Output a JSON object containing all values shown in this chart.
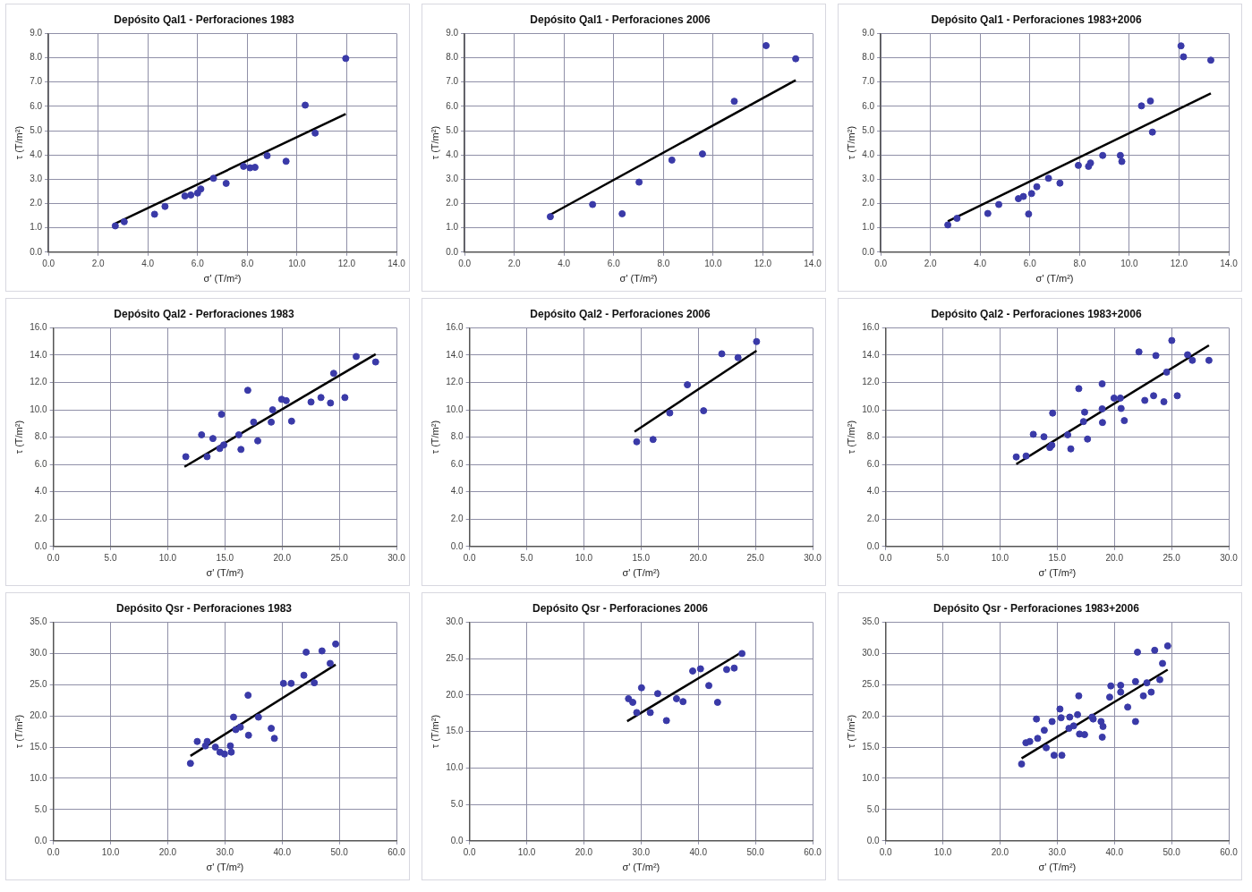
{
  "chart_data": [
    {
      "type": "scatter",
      "title": "Depósito Qal1 - Perforaciones 1983",
      "xlabel": "σ' (T/m²)",
      "ylabel": "τ (T/m²)",
      "xlim": [
        0,
        14
      ],
      "ylim": [
        0,
        9
      ],
      "xticks": [
        {
          "value": 0,
          "label": "0.0"
        },
        {
          "value": 2,
          "label": "2.0"
        },
        {
          "value": 4,
          "label": "4.0"
        },
        {
          "value": 6,
          "label": "6.0"
        },
        {
          "value": 8,
          "label": "8.0"
        },
        {
          "value": 10,
          "label": "10.0"
        },
        {
          "value": 12,
          "label": "12.0"
        },
        {
          "value": 14,
          "label": "14.0"
        }
      ],
      "yticks": [
        {
          "value": 0,
          "label": "0.0"
        },
        {
          "value": 1,
          "label": "1.0"
        },
        {
          "value": 2,
          "label": "2.0"
        },
        {
          "value": 3,
          "label": "3.0"
        },
        {
          "value": 4,
          "label": "4.0"
        },
        {
          "value": 5,
          "label": "5.0"
        },
        {
          "value": 6,
          "label": "6.0"
        },
        {
          "value": 7,
          "label": "7.0"
        },
        {
          "value": 8,
          "label": "8.0"
        },
        {
          "value": 9,
          "label": "9.0"
        }
      ],
      "grid": true,
      "legend": false,
      "series": [
        {
          "type": "scatter",
          "color": "#3a3aa8",
          "marker": "circle",
          "x": [
            2.69,
            3.05,
            4.27,
            4.69,
            5.49,
            5.73,
            6.0,
            6.13,
            6.64,
            7.15,
            7.85,
            8.11,
            8.31,
            8.8,
            9.56,
            10.33,
            10.73,
            11.96
          ],
          "values": [
            1.08,
            1.25,
            1.56,
            1.88,
            2.31,
            2.35,
            2.43,
            2.6,
            3.04,
            2.83,
            3.53,
            3.47,
            3.49,
            3.97,
            3.74,
            6.05,
            4.9,
            7.97
          ]
        },
        {
          "type": "line",
          "color": "#000000",
          "marker": "none",
          "x": [
            2.69,
            11.96
          ],
          "values": [
            1.18,
            5.69
          ]
        }
      ]
    },
    {
      "type": "scatter",
      "title": "Depósito Qal1 - Perforaciones 2006",
      "xlabel": "σ' (T/m²)",
      "ylabel": "τ (T/m²)",
      "xlim": [
        0,
        14
      ],
      "ylim": [
        0,
        9
      ],
      "xticks": [
        {
          "value": 0,
          "label": "0.0"
        },
        {
          "value": 2,
          "label": "2.0"
        },
        {
          "value": 4,
          "label": "4.0"
        },
        {
          "value": 6,
          "label": "6.0"
        },
        {
          "value": 8,
          "label": "8.0"
        },
        {
          "value": 10,
          "label": "10.0"
        },
        {
          "value": 12,
          "label": "12.0"
        },
        {
          "value": 14,
          "label": "14.0"
        }
      ],
      "yticks": [
        {
          "value": 0,
          "label": "0.0"
        },
        {
          "value": 1,
          "label": "1.0"
        },
        {
          "value": 2,
          "label": "2.0"
        },
        {
          "value": 3,
          "label": "3.0"
        },
        {
          "value": 4,
          "label": "4.0"
        },
        {
          "value": 5,
          "label": "5.0"
        },
        {
          "value": 6,
          "label": "6.0"
        },
        {
          "value": 7,
          "label": "7.0"
        },
        {
          "value": 8,
          "label": "8.0"
        },
        {
          "value": 9,
          "label": "9.0"
        }
      ],
      "grid": true,
      "legend": false,
      "series": [
        {
          "type": "scatter",
          "color": "#3a3aa8",
          "marker": "circle",
          "x": [
            3.45,
            5.15,
            6.34,
            7.02,
            8.34,
            9.57,
            10.85,
            12.13,
            13.32
          ],
          "values": [
            1.46,
            1.96,
            1.58,
            2.88,
            3.79,
            4.04,
            6.21,
            8.5,
            7.96
          ]
        },
        {
          "type": "line",
          "color": "#000000",
          "marker": "none",
          "x": [
            3.45,
            13.32
          ],
          "values": [
            1.54,
            7.08
          ]
        }
      ]
    },
    {
      "type": "scatter",
      "title": "Depósito Qal1 - Perforaciones 1983+2006",
      "xlabel": "σ' (T/m²)",
      "ylabel": "τ (T/m²)",
      "xlim": [
        0,
        14
      ],
      "ylim": [
        0,
        9
      ],
      "xticks": [
        {
          "value": 0,
          "label": "0.0"
        },
        {
          "value": 2,
          "label": "2.0"
        },
        {
          "value": 4,
          "label": "4.0"
        },
        {
          "value": 6,
          "label": "6.0"
        },
        {
          "value": 8,
          "label": "8.0"
        },
        {
          "value": 10,
          "label": "10.0"
        },
        {
          "value": 12,
          "label": "12.0"
        },
        {
          "value": 14,
          "label": "14.0"
        }
      ],
      "yticks": [
        {
          "value": 0,
          "label": "0.0"
        },
        {
          "value": 1,
          "label": "1.0"
        },
        {
          "value": 2,
          "label": "2.0"
        },
        {
          "value": 3,
          "label": "3.0"
        },
        {
          "value": 4,
          "label": "4.0"
        },
        {
          "value": 5,
          "label": "5.0"
        },
        {
          "value": 6,
          "label": "6.0"
        },
        {
          "value": 7,
          "label": "7.0"
        },
        {
          "value": 8,
          "label": "8.0"
        },
        {
          "value": 9,
          "label": "9.0"
        }
      ],
      "grid": true,
      "legend": false,
      "series": [
        {
          "type": "scatter",
          "color": "#3a3aa8",
          "marker": "circle",
          "x": [
            2.7,
            3.07,
            4.31,
            4.75,
            5.54,
            5.74,
            6.07,
            6.28,
            5.95,
            6.75,
            7.21,
            7.95,
            8.36,
            8.44,
            8.93,
            9.64,
            9.7,
            10.49,
            10.85,
            10.93,
            12.08,
            12.18,
            13.28
          ],
          "values": [
            1.12,
            1.39,
            1.59,
            1.96,
            2.2,
            2.29,
            2.41,
            2.69,
            1.57,
            3.04,
            2.84,
            3.57,
            3.53,
            3.67,
            3.98,
            3.98,
            3.73,
            6.02,
            6.22,
            4.94,
            8.49,
            8.04,
            7.9
          ]
        },
        {
          "type": "line",
          "color": "#000000",
          "marker": "none",
          "x": [
            2.7,
            13.28
          ],
          "values": [
            1.27,
            6.53
          ]
        }
      ]
    },
    {
      "type": "scatter",
      "title": "Depósito Qal2 - Perforaciones 1983",
      "xlabel": "σ' (T/m²)",
      "ylabel": "τ (T/m²)",
      "xlim": [
        0,
        30
      ],
      "ylim": [
        0,
        16
      ],
      "xticks": [
        {
          "value": 0,
          "label": "0.0"
        },
        {
          "value": 5,
          "label": "5.0"
        },
        {
          "value": 10,
          "label": "10.0"
        },
        {
          "value": 15,
          "label": "15.0"
        },
        {
          "value": 20,
          "label": "20.0"
        },
        {
          "value": 25,
          "label": "25.0"
        },
        {
          "value": 30,
          "label": "30.0"
        }
      ],
      "yticks": [
        {
          "value": 0,
          "label": "0.0"
        },
        {
          "value": 2,
          "label": "2.0"
        },
        {
          "value": 4,
          "label": "4.0"
        },
        {
          "value": 6,
          "label": "6.0"
        },
        {
          "value": 8,
          "label": "8.0"
        },
        {
          "value": 10,
          "label": "10.0"
        },
        {
          "value": 12,
          "label": "12.0"
        },
        {
          "value": 14,
          "label": "14.0"
        },
        {
          "value": 16,
          "label": "16.0"
        }
      ],
      "grid": true,
      "legend": false,
      "series": [
        {
          "type": "scatter",
          "color": "#3a3aa8",
          "marker": "circle",
          "x": [
            11.58,
            12.96,
            13.44,
            13.95,
            14.7,
            14.55,
            14.9,
            16.21,
            16.4,
            17.0,
            17.51,
            17.87,
            19.05,
            19.17,
            19.96,
            20.36,
            20.83,
            22.53,
            23.4,
            24.23,
            24.51,
            25.49,
            26.48,
            28.18
          ],
          "values": [
            6.57,
            8.17,
            6.57,
            7.9,
            9.67,
            7.17,
            7.43,
            8.17,
            7.1,
            11.43,
            9.1,
            7.73,
            9.1,
            10.0,
            10.77,
            10.67,
            9.17,
            10.57,
            10.9,
            10.5,
            12.67,
            10.9,
            13.9,
            13.5
          ]
        },
        {
          "type": "line",
          "color": "#000000",
          "marker": "none",
          "x": [
            11.46,
            28.18
          ],
          "values": [
            5.83,
            14.07
          ]
        }
      ]
    },
    {
      "type": "scatter",
      "title": "Depósito Qal2 - Perforaciones 2006",
      "xlabel": "σ' (T/m²)",
      "ylabel": "τ (T/m²)",
      "xlim": [
        0,
        30
      ],
      "ylim": [
        0,
        16
      ],
      "xticks": [
        {
          "value": 0,
          "label": "0.0"
        },
        {
          "value": 5,
          "label": "5.0"
        },
        {
          "value": 10,
          "label": "10.0"
        },
        {
          "value": 15,
          "label": "15.0"
        },
        {
          "value": 20,
          "label": "20.0"
        },
        {
          "value": 25,
          "label": "25.0"
        },
        {
          "value": 30,
          "label": "30.0"
        }
      ],
      "yticks": [
        {
          "value": 0,
          "label": "0.0"
        },
        {
          "value": 2,
          "label": "2.0"
        },
        {
          "value": 4,
          "label": "4.0"
        },
        {
          "value": 6,
          "label": "6.0"
        },
        {
          "value": 8,
          "label": "8.0"
        },
        {
          "value": 10,
          "label": "10.0"
        },
        {
          "value": 12,
          "label": "12.0"
        },
        {
          "value": 14,
          "label": "14.0"
        },
        {
          "value": 16,
          "label": "16.0"
        }
      ],
      "grid": true,
      "legend": false,
      "series": [
        {
          "type": "scatter",
          "color": "#3a3aa8",
          "marker": "circle",
          "x": [
            14.62,
            16.05,
            17.51,
            19.05,
            20.47,
            22.06,
            23.48,
            25.1
          ],
          "values": [
            7.66,
            7.83,
            9.77,
            11.83,
            9.93,
            14.1,
            13.82,
            14.99
          ]
        },
        {
          "type": "line",
          "color": "#000000",
          "marker": "none",
          "x": [
            14.43,
            25.1
          ],
          "values": [
            8.4,
            14.32
          ]
        }
      ]
    },
    {
      "type": "scatter",
      "title": "Depósito Qal2 - Perforaciones 1983+2006",
      "xlabel": "σ' (T/m²)",
      "ylabel": "τ (T/m²)",
      "xlim": [
        0,
        30
      ],
      "ylim": [
        0,
        16
      ],
      "xticks": [
        {
          "value": 0,
          "label": "0.0"
        },
        {
          "value": 5,
          "label": "5.0"
        },
        {
          "value": 10,
          "label": "10.0"
        },
        {
          "value": 15,
          "label": "15.0"
        },
        {
          "value": 20,
          "label": "20.0"
        },
        {
          "value": 25,
          "label": "25.0"
        },
        {
          "value": 30,
          "label": "30.0"
        }
      ],
      "yticks": [
        {
          "value": 0,
          "label": "0.0"
        },
        {
          "value": 2,
          "label": "2.0"
        },
        {
          "value": 4,
          "label": "4.0"
        },
        {
          "value": 6,
          "label": "6.0"
        },
        {
          "value": 8,
          "label": "8.0"
        },
        {
          "value": 10,
          "label": "10.0"
        },
        {
          "value": 12,
          "label": "12.0"
        },
        {
          "value": 14,
          "label": "14.0"
        },
        {
          "value": 16,
          "label": "16.0"
        }
      ],
      "grid": true,
      "legend": false,
      "series": [
        {
          "type": "scatter",
          "color": "#3a3aa8",
          "marker": "circle",
          "x": [
            11.42,
            12.28,
            12.91,
            13.84,
            14.36,
            14.6,
            14.53,
            15.92,
            16.19,
            16.89,
            17.4,
            17.3,
            17.65,
            18.93,
            18.96,
            18.93,
            19.97,
            20.52,
            20.59,
            20.87,
            22.15,
            22.66,
            23.43,
            23.63,
            24.33,
            25.02,
            25.5,
            26.4,
            26.82,
            28.27,
            24.57
          ],
          "values": [
            6.55,
            6.62,
            8.21,
            8.03,
            7.24,
            9.76,
            7.41,
            8.17,
            7.14,
            11.55,
            9.83,
            9.14,
            7.86,
            11.9,
            9.07,
            10.07,
            10.86,
            10.86,
            10.1,
            9.21,
            14.24,
            10.69,
            11.03,
            13.97,
            10.59,
            15.07,
            11.03,
            14.03,
            13.62,
            13.62,
            12.76
          ]
        },
        {
          "type": "line",
          "color": "#000000",
          "marker": "none",
          "x": [
            11.42,
            28.27
          ],
          "values": [
            6.03,
            14.72
          ]
        }
      ]
    },
    {
      "type": "scatter",
      "title": "Depósito Qsr - Perforaciones 1983",
      "xlabel": "σ' (T/m²)",
      "ylabel": "τ (T/m²)",
      "xlim": [
        0,
        60
      ],
      "ylim": [
        0,
        35
      ],
      "xticks": [
        {
          "value": 0,
          "label": "0.0"
        },
        {
          "value": 10,
          "label": "10.0"
        },
        {
          "value": 20,
          "label": "20.0"
        },
        {
          "value": 30,
          "label": "30.0"
        },
        {
          "value": 40,
          "label": "40.0"
        },
        {
          "value": 50,
          "label": "50.0"
        },
        {
          "value": 60,
          "label": "60.0"
        }
      ],
      "yticks": [
        {
          "value": 0,
          "label": "0.0"
        },
        {
          "value": 5,
          "label": "5.0"
        },
        {
          "value": 10,
          "label": "10.0"
        },
        {
          "value": 15,
          "label": "15.0"
        },
        {
          "value": 20,
          "label": "20.0"
        },
        {
          "value": 25,
          "label": "25.0"
        },
        {
          "value": 30,
          "label": "30.0"
        },
        {
          "value": 35,
          "label": "35.0"
        }
      ],
      "grid": true,
      "legend": false,
      "series": [
        {
          "type": "scatter",
          "color": "#3a3aa8",
          "marker": "circle",
          "x": [
            23.97,
            25.16,
            26.59,
            26.9,
            28.33,
            29.13,
            29.92,
            31.11,
            30.95,
            31.51,
            31.9,
            32.7,
            34.13,
            34.05,
            35.87,
            38.1,
            38.65,
            40.24,
            41.59,
            43.81,
            44.21,
            45.63,
            46.98,
            48.41,
            49.37
          ],
          "values": [
            12.4,
            15.9,
            15.2,
            15.9,
            15.0,
            14.2,
            13.9,
            14.2,
            15.2,
            19.8,
            17.8,
            18.2,
            16.9,
            23.3,
            19.8,
            18.0,
            16.4,
            25.2,
            25.2,
            26.5,
            30.2,
            25.3,
            30.4,
            28.4,
            31.5
          ]
        },
        {
          "type": "line",
          "color": "#000000",
          "marker": "none",
          "x": [
            23.97,
            49.37
          ],
          "values": [
            13.6,
            28.2
          ]
        }
      ]
    },
    {
      "type": "scatter",
      "title": "Depósito Qsr - Perforaciones 2006",
      "xlabel": "σ' (T/m²)",
      "ylabel": "τ (T/m²)",
      "xlim": [
        0,
        60
      ],
      "ylim": [
        0,
        30
      ],
      "xticks": [
        {
          "value": 0,
          "label": "0.0"
        },
        {
          "value": 10,
          "label": "10.0"
        },
        {
          "value": 20,
          "label": "20.0"
        },
        {
          "value": 30,
          "label": "30.0"
        },
        {
          "value": 40,
          "label": "40.0"
        },
        {
          "value": 50,
          "label": "50.0"
        },
        {
          "value": 60,
          "label": "60.0"
        }
      ],
      "yticks": [
        {
          "value": 0,
          "label": "0.0"
        },
        {
          "value": 5,
          "label": "5.0"
        },
        {
          "value": 10,
          "label": "10.0"
        },
        {
          "value": 15,
          "label": "15.0"
        },
        {
          "value": 20,
          "label": "20.0"
        },
        {
          "value": 25,
          "label": "25.0"
        },
        {
          "value": 30,
          "label": "30.0"
        }
      ],
      "grid": true,
      "legend": false,
      "series": [
        {
          "type": "scatter",
          "color": "#3a3aa8",
          "marker": "circle",
          "x": [
            27.8,
            29.24,
            28.55,
            30.08,
            31.61,
            32.91,
            34.44,
            36.2,
            37.34,
            39.03,
            40.4,
            41.85,
            43.38,
            44.97,
            46.29,
            47.65
          ],
          "values": [
            19.5,
            17.6,
            19.0,
            21.0,
            17.6,
            20.2,
            16.5,
            19.5,
            19.1,
            23.3,
            23.6,
            21.3,
            19.0,
            23.5,
            23.7,
            25.7
          ]
        },
        {
          "type": "line",
          "color": "#000000",
          "marker": "none",
          "x": [
            27.56,
            47.65
          ],
          "values": [
            16.4,
            25.9
          ]
        }
      ]
    },
    {
      "type": "scatter",
      "title": "Depósito Qsr - Perforaciones 1983+2006",
      "xlabel": "σ' (T/m²)",
      "ylabel": "τ (T/m²)",
      "xlim": [
        0,
        60
      ],
      "ylim": [
        0,
        35
      ],
      "xticks": [
        {
          "value": 0,
          "label": "0.0"
        },
        {
          "value": 10,
          "label": "10.0"
        },
        {
          "value": 20,
          "label": "20.0"
        },
        {
          "value": 30,
          "label": "30.0"
        },
        {
          "value": 40,
          "label": "40.0"
        },
        {
          "value": 50,
          "label": "50.0"
        },
        {
          "value": 60,
          "label": "60.0"
        }
      ],
      "yticks": [
        {
          "value": 0,
          "label": "0.0"
        },
        {
          "value": 5,
          "label": "5.0"
        },
        {
          "value": 10,
          "label": "10.0"
        },
        {
          "value": 15,
          "label": "15.0"
        },
        {
          "value": 20,
          "label": "20.0"
        },
        {
          "value": 25,
          "label": "25.0"
        },
        {
          "value": 30,
          "label": "30.0"
        },
        {
          "value": 35,
          "label": "35.0"
        }
      ],
      "grid": true,
      "legend": false,
      "series": [
        {
          "type": "scatter",
          "color": "#3a3aa8",
          "marker": "circle",
          "x": [
            23.77,
            25.21,
            26.58,
            26.37,
            27.74,
            28.08,
            29.11,
            29.45,
            30.48,
            30.68,
            30.82,
            32.05,
            32.88,
            33.77,
            33.56,
            33.9,
            34.79,
            36.1,
            36.3,
            37.67,
            37.88,
            39.18,
            39.38,
            41.1,
            41.1,
            42.33,
            43.7,
            43.7,
            44.04,
            45.07,
            45.68,
            46.44,
            47.05,
            47.95,
            48.42,
            49.32,
            38.01,
            32.19,
            24.52
          ],
          "values": [
            12.3,
            15.9,
            16.4,
            19.5,
            17.7,
            14.9,
            19.1,
            13.7,
            21.1,
            19.7,
            13.7,
            18.0,
            18.4,
            23.2,
            20.2,
            17.1,
            17.0,
            19.8,
            19.5,
            19.1,
            16.6,
            23.0,
            24.8,
            24.9,
            23.8,
            21.4,
            25.5,
            19.1,
            30.2,
            23.2,
            25.3,
            23.8,
            30.5,
            25.8,
            28.4,
            31.2,
            18.3,
            19.8,
            15.7
          ]
        },
        {
          "type": "line",
          "color": "#000000",
          "marker": "none",
          "x": [
            23.77,
            49.32
          ],
          "values": [
            13.2,
            27.4
          ]
        }
      ]
    }
  ]
}
